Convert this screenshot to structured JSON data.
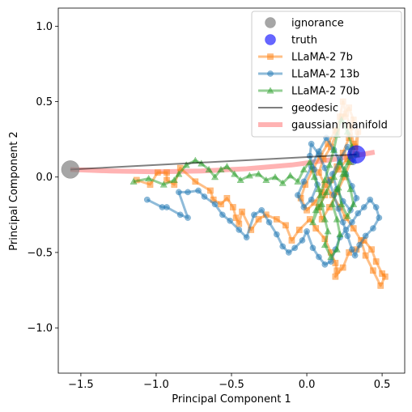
{
  "chart_data": {
    "type": "line",
    "xlabel": "Principal Component 1",
    "ylabel": "Principal Component 2",
    "xlim": [
      -1.65,
      0.65
    ],
    "ylim": [
      -1.3,
      1.12
    ],
    "xticks": [
      -1.5,
      -1.0,
      -0.5,
      0.0,
      0.5
    ],
    "xtick_labels": [
      "−1.5",
      "−1.0",
      "−0.5",
      "0.0",
      "0.5"
    ],
    "yticks": [
      1.0,
      0.5,
      0.0,
      -0.5,
      -1.0
    ],
    "ytick_labels": [
      "1.0",
      "0.5",
      "0.0",
      "−0.5",
      "−1.0"
    ],
    "grid": false,
    "legend_position": "top-right",
    "legend": [
      {
        "label": "ignorance",
        "kind": "marker",
        "color": "#808080",
        "marker": "circle"
      },
      {
        "label": "truth",
        "kind": "marker",
        "color": "#0000ff",
        "marker": "circle"
      },
      {
        "label": "LLaMA-2 7b",
        "kind": "line-marker",
        "color": "#ff7f0e",
        "marker": "square"
      },
      {
        "label": "LLaMA-2 13b",
        "kind": "line-marker",
        "color": "#1f77b4",
        "marker": "circle"
      },
      {
        "label": "LLaMA-2 70b",
        "kind": "line-marker",
        "color": "#2ca02c",
        "marker": "triangle"
      },
      {
        "label": "geodesic",
        "kind": "line",
        "color": "#000000"
      },
      {
        "label": "gaussian manifold",
        "kind": "thick-line",
        "color": "#ff9999"
      }
    ],
    "ignorance": {
      "x": -1.57,
      "y": 0.05,
      "color": "#808080"
    },
    "truth": {
      "x": 0.33,
      "y": 0.15,
      "color": "#0000ff"
    },
    "geodesic": {
      "color": "#000000",
      "points": [
        [
          -1.57,
          0.05
        ],
        [
          0.33,
          0.15
        ]
      ]
    },
    "gaussian_manifold": {
      "color": "#ff9999",
      "points": [
        [
          -1.57,
          0.05
        ],
        [
          -1.3,
          0.04
        ],
        [
          -1.0,
          0.035
        ],
        [
          -0.7,
          0.04
        ],
        [
          -0.4,
          0.055
        ],
        [
          -0.1,
          0.08
        ],
        [
          0.2,
          0.12
        ],
        [
          0.45,
          0.165
        ]
      ]
    },
    "series": [
      {
        "name": "LLaMA-2 7b",
        "color": "#ff7f0e",
        "marker": "square",
        "points": [
          [
            -1.13,
            -0.02
          ],
          [
            -1.04,
            -0.05
          ],
          [
            -0.99,
            0.03
          ],
          [
            -0.93,
            0.03
          ],
          [
            -0.93,
            -0.02
          ],
          [
            -0.88,
            -0.05
          ],
          [
            -0.84,
            0.06
          ],
          [
            -0.74,
            -0.03
          ],
          [
            -0.64,
            -0.09
          ],
          [
            -0.62,
            -0.15
          ],
          [
            -0.57,
            -0.18
          ],
          [
            -0.53,
            -0.14
          ],
          [
            -0.49,
            -0.2
          ],
          [
            -0.47,
            -0.27
          ],
          [
            -0.45,
            -0.31
          ],
          [
            -0.43,
            -0.23
          ],
          [
            -0.37,
            -0.35
          ],
          [
            -0.32,
            -0.28
          ],
          [
            -0.27,
            -0.25
          ],
          [
            -0.2,
            -0.28
          ],
          [
            -0.14,
            -0.32
          ],
          [
            -0.1,
            -0.42
          ],
          [
            -0.05,
            -0.35
          ],
          [
            0.02,
            -0.28
          ],
          [
            0.06,
            -0.34
          ],
          [
            0.12,
            -0.41
          ],
          [
            0.16,
            -0.5
          ],
          [
            0.19,
            -0.57
          ],
          [
            0.2,
            -0.62
          ],
          [
            0.19,
            -0.66
          ],
          [
            0.24,
            -0.6
          ],
          [
            0.28,
            -0.5
          ],
          [
            0.33,
            -0.48
          ],
          [
            0.38,
            -0.42
          ],
          [
            0.43,
            -0.48
          ],
          [
            0.46,
            -0.56
          ],
          [
            0.5,
            -0.64
          ],
          [
            0.52,
            -0.66
          ],
          [
            0.49,
            -0.72
          ],
          [
            0.44,
            -0.62
          ],
          [
            0.39,
            -0.52
          ],
          [
            0.36,
            -0.42
          ],
          [
            0.31,
            -0.34
          ],
          [
            0.26,
            -0.27
          ],
          [
            0.22,
            -0.2
          ],
          [
            0.17,
            -0.12
          ],
          [
            0.12,
            -0.05
          ],
          [
            0.08,
            0.03
          ],
          [
            0.11,
            0.12
          ],
          [
            0.16,
            0.2
          ],
          [
            0.2,
            0.3
          ],
          [
            0.22,
            0.4
          ],
          [
            0.24,
            0.5
          ],
          [
            0.26,
            0.42
          ],
          [
            0.29,
            0.33
          ],
          [
            0.31,
            0.22
          ],
          [
            0.27,
            0.12
          ],
          [
            0.21,
            0.05
          ],
          [
            0.15,
            -0.02
          ],
          [
            0.1,
            -0.1
          ],
          [
            0.05,
            -0.17
          ],
          [
            0.0,
            -0.22
          ],
          [
            -0.04,
            -0.14
          ],
          [
            -0.01,
            -0.05
          ],
          [
            0.04,
            0.05
          ],
          [
            0.09,
            0.14
          ],
          [
            0.14,
            0.22
          ],
          [
            0.19,
            0.31
          ],
          [
            0.24,
            0.4
          ],
          [
            0.28,
            0.46
          ],
          [
            0.31,
            0.38
          ],
          [
            0.28,
            0.26
          ],
          [
            0.24,
            0.16
          ],
          [
            0.2,
            0.07
          ],
          [
            0.16,
            -0.02
          ],
          [
            0.12,
            -0.12
          ],
          [
            0.08,
            -0.2
          ],
          [
            0.1,
            -0.28
          ],
          [
            0.15,
            -0.2
          ],
          [
            0.2,
            -0.1
          ],
          [
            0.25,
            0.0
          ],
          [
            0.29,
            0.1
          ],
          [
            0.32,
            0.2
          ],
          [
            0.34,
            0.3
          ],
          [
            0.33,
            0.15
          ]
        ]
      },
      {
        "name": "LLaMA-2 13b",
        "color": "#1f77b4",
        "marker": "circle",
        "points": [
          [
            -1.06,
            -0.15
          ],
          [
            -0.96,
            -0.2
          ],
          [
            -0.93,
            -0.2
          ],
          [
            -0.84,
            -0.25
          ],
          [
            -0.79,
            -0.27
          ],
          [
            -0.85,
            -0.1
          ],
          [
            -0.79,
            -0.1
          ],
          [
            -0.72,
            -0.09
          ],
          [
            -0.68,
            -0.13
          ],
          [
            -0.61,
            -0.18
          ],
          [
            -0.56,
            -0.25
          ],
          [
            -0.51,
            -0.29
          ],
          [
            -0.45,
            -0.35
          ],
          [
            -0.4,
            -0.4
          ],
          [
            -0.35,
            -0.25
          ],
          [
            -0.3,
            -0.22
          ],
          [
            -0.25,
            -0.3
          ],
          [
            -0.2,
            -0.38
          ],
          [
            -0.16,
            -0.46
          ],
          [
            -0.12,
            -0.5
          ],
          [
            -0.08,
            -0.47
          ],
          [
            -0.03,
            -0.42
          ],
          [
            0.0,
            -0.36
          ],
          [
            0.04,
            -0.47
          ],
          [
            0.08,
            -0.53
          ],
          [
            0.12,
            -0.58
          ],
          [
            0.16,
            -0.56
          ],
          [
            0.19,
            -0.48
          ],
          [
            0.22,
            -0.4
          ],
          [
            0.26,
            -0.35
          ],
          [
            0.3,
            -0.3
          ],
          [
            0.34,
            -0.24
          ],
          [
            0.38,
            -0.2
          ],
          [
            0.42,
            -0.15
          ],
          [
            0.46,
            -0.2
          ],
          [
            0.48,
            -0.27
          ],
          [
            0.44,
            -0.34
          ],
          [
            0.39,
            -0.39
          ],
          [
            0.35,
            -0.45
          ],
          [
            0.32,
            -0.52
          ],
          [
            0.3,
            -0.48
          ],
          [
            0.27,
            -0.39
          ],
          [
            0.24,
            -0.3
          ],
          [
            0.21,
            -0.21
          ],
          [
            0.18,
            -0.12
          ],
          [
            0.15,
            -0.03
          ],
          [
            0.12,
            0.06
          ],
          [
            0.08,
            0.15
          ],
          [
            0.03,
            0.22
          ],
          [
            0.02,
            0.14
          ],
          [
            0.05,
            0.05
          ],
          [
            0.07,
            -0.05
          ],
          [
            0.03,
            -0.15
          ],
          [
            -0.02,
            -0.2
          ],
          [
            -0.06,
            -0.12
          ],
          [
            -0.02,
            -0.03
          ],
          [
            0.03,
            0.07
          ],
          [
            0.08,
            0.17
          ],
          [
            0.13,
            0.26
          ],
          [
            0.18,
            0.18
          ],
          [
            0.22,
            0.1
          ],
          [
            0.26,
            0.02
          ],
          [
            0.3,
            -0.06
          ],
          [
            0.33,
            -0.14
          ],
          [
            0.29,
            -0.22
          ],
          [
            0.24,
            -0.16
          ],
          [
            0.2,
            -0.08
          ],
          [
            0.17,
            0.02
          ],
          [
            0.22,
            0.12
          ],
          [
            0.27,
            0.2
          ],
          [
            0.31,
            0.1
          ],
          [
            0.33,
            0.15
          ]
        ]
      },
      {
        "name": "LLaMA-2 70b",
        "color": "#2ca02c",
        "marker": "triangle",
        "points": [
          [
            -1.15,
            -0.03
          ],
          [
            -1.05,
            -0.01
          ],
          [
            -0.95,
            -0.05
          ],
          [
            -0.88,
            -0.02
          ],
          [
            -0.85,
            0.02
          ],
          [
            -0.8,
            0.08
          ],
          [
            -0.74,
            0.11
          ],
          [
            -0.7,
            0.09
          ],
          [
            -0.65,
            0.05
          ],
          [
            -0.61,
            0.0
          ],
          [
            -0.57,
            0.05
          ],
          [
            -0.53,
            0.07
          ],
          [
            -0.48,
            0.02
          ],
          [
            -0.44,
            -0.02
          ],
          [
            -0.38,
            0.01
          ],
          [
            -0.32,
            0.02
          ],
          [
            -0.27,
            -0.02
          ],
          [
            -0.21,
            0.0
          ],
          [
            -0.16,
            -0.04
          ],
          [
            -0.11,
            0.01
          ],
          [
            -0.06,
            -0.03
          ],
          [
            -0.02,
            0.05
          ],
          [
            0.02,
            0.1
          ],
          [
            0.05,
            0.0
          ],
          [
            0.08,
            -0.08
          ],
          [
            0.1,
            -0.18
          ],
          [
            0.12,
            -0.28
          ],
          [
            0.14,
            -0.36
          ],
          [
            0.12,
            -0.45
          ],
          [
            0.16,
            -0.53
          ],
          [
            0.2,
            -0.48
          ],
          [
            0.22,
            -0.38
          ],
          [
            0.2,
            -0.28
          ],
          [
            0.17,
            -0.18
          ],
          [
            0.2,
            -0.08
          ],
          [
            0.24,
            0.02
          ],
          [
            0.28,
            0.1
          ],
          [
            0.3,
            0.2
          ],
          [
            0.27,
            0.3
          ],
          [
            0.23,
            0.38
          ],
          [
            0.2,
            0.28
          ],
          [
            0.18,
            0.18
          ],
          [
            0.15,
            0.08
          ],
          [
            0.12,
            -0.02
          ],
          [
            0.09,
            -0.12
          ],
          [
            0.06,
            -0.22
          ],
          [
            0.04,
            -0.3
          ],
          [
            0.08,
            -0.2
          ],
          [
            0.13,
            -0.1
          ],
          [
            0.18,
            0.0
          ],
          [
            0.22,
            0.1
          ],
          [
            0.26,
            0.02
          ],
          [
            0.29,
            -0.08
          ],
          [
            0.31,
            -0.18
          ],
          [
            0.27,
            -0.26
          ],
          [
            0.23,
            -0.18
          ],
          [
            0.21,
            -0.07
          ],
          [
            0.25,
            0.05
          ],
          [
            0.29,
            0.14
          ],
          [
            0.33,
            0.15
          ]
        ]
      }
    ]
  }
}
